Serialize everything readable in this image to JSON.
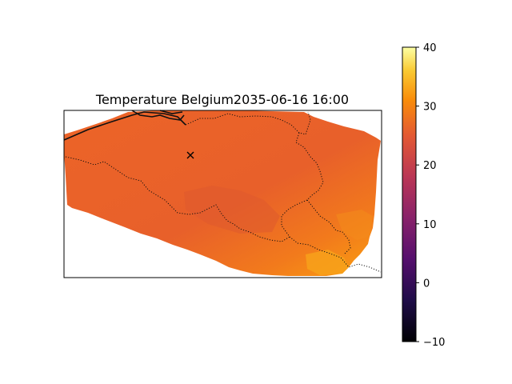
{
  "title": "Temperature Belgium2035-06-16 16:00",
  "colorbar": {
    "colormap": "inferno",
    "min": -10,
    "max": 40,
    "ticks": [
      "40",
      "30",
      "20",
      "10",
      "0",
      "−10"
    ],
    "tick_values": [
      40,
      30,
      20,
      10,
      0,
      -10
    ]
  },
  "map": {
    "region": "Belgium",
    "datetime": "2035-06-16 16:00",
    "field": "temperature",
    "typical_value": 24,
    "northwest_value": 25,
    "southeast_value": 31,
    "marker": {
      "symbol": "x-marker-icon"
    },
    "border_style": "dotted",
    "coastline_style": "solid"
  }
}
